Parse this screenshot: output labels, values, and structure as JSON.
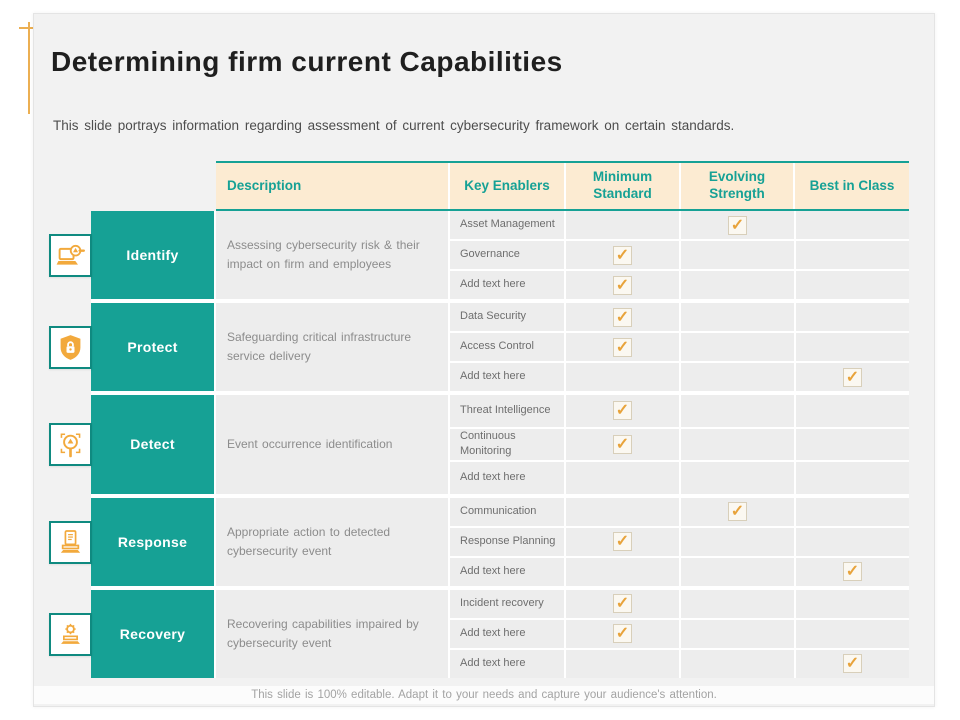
{
  "slide": {
    "title": "Determining firm current Capabilities",
    "subtitle": "This slide portrays information regarding assessment of current cybersecurity framework on certain standards.",
    "footer": "This slide is 100% editable. Adapt it to your needs and capture  your audience's attention."
  },
  "colors": {
    "teal": "#16a195",
    "teal_dark": "#0f8a80",
    "header_cream": "#fcebd2",
    "icon_orange": "#f2a93c",
    "check_orange": "#e8a33b",
    "cell_gray": "#ededed"
  },
  "table": {
    "headers": {
      "description": "Description",
      "key_enablers": "Key Enablers",
      "minimum_standard": "Minimum Standard",
      "evolving_strength": "Evolving Strength",
      "best_in_class": "Best in Class"
    },
    "check_columns": [
      "minimum_standard",
      "evolving_strength",
      "best_in_class"
    ],
    "checkmark_glyph": "✓",
    "groups": [
      {
        "label": "Identify",
        "icon": "laptop-search-icon",
        "description": "Assessing cybersecurity risk & their impact on firm and employees",
        "rows": [
          {
            "enabler": "Asset Management",
            "check": "evolving_strength"
          },
          {
            "enabler": "Governance",
            "check": "minimum_standard"
          },
          {
            "enabler": "Add text here",
            "check": "minimum_standard"
          }
        ]
      },
      {
        "label": "Protect",
        "icon": "shield-lock-icon",
        "description": "Safeguarding critical infrastructure service delivery",
        "rows": [
          {
            "enabler": "Data Security",
            "check": "minimum_standard"
          },
          {
            "enabler": "Access Control",
            "check": "minimum_standard"
          },
          {
            "enabler": "Add text here",
            "check": "best_in_class"
          }
        ]
      },
      {
        "label": "Detect",
        "icon": "search-alert-icon",
        "description": "Event occurrence identification",
        "rows": [
          {
            "enabler": "Threat Intelligence",
            "check": "minimum_standard"
          },
          {
            "enabler": "Continuous Monitoring",
            "check": "minimum_standard"
          },
          {
            "enabler": "Add text here",
            "check": null
          }
        ]
      },
      {
        "label": "Response",
        "icon": "report-stand-icon",
        "description": "Appropriate action to detected cybersecurity event",
        "rows": [
          {
            "enabler": "Communication",
            "check": "evolving_strength"
          },
          {
            "enabler": "Response Planning",
            "check": "minimum_standard"
          },
          {
            "enabler": "Add text here",
            "check": "best_in_class"
          }
        ]
      },
      {
        "label": "Recovery",
        "icon": "laptop-gear-icon",
        "description": "Recovering capabilities impaired by cybersecurity event",
        "rows": [
          {
            "enabler": "Incident recovery",
            "check": "minimum_standard"
          },
          {
            "enabler": "Add text here",
            "check": "minimum_standard"
          },
          {
            "enabler": "Add text here",
            "check": "best_in_class"
          }
        ]
      }
    ]
  }
}
